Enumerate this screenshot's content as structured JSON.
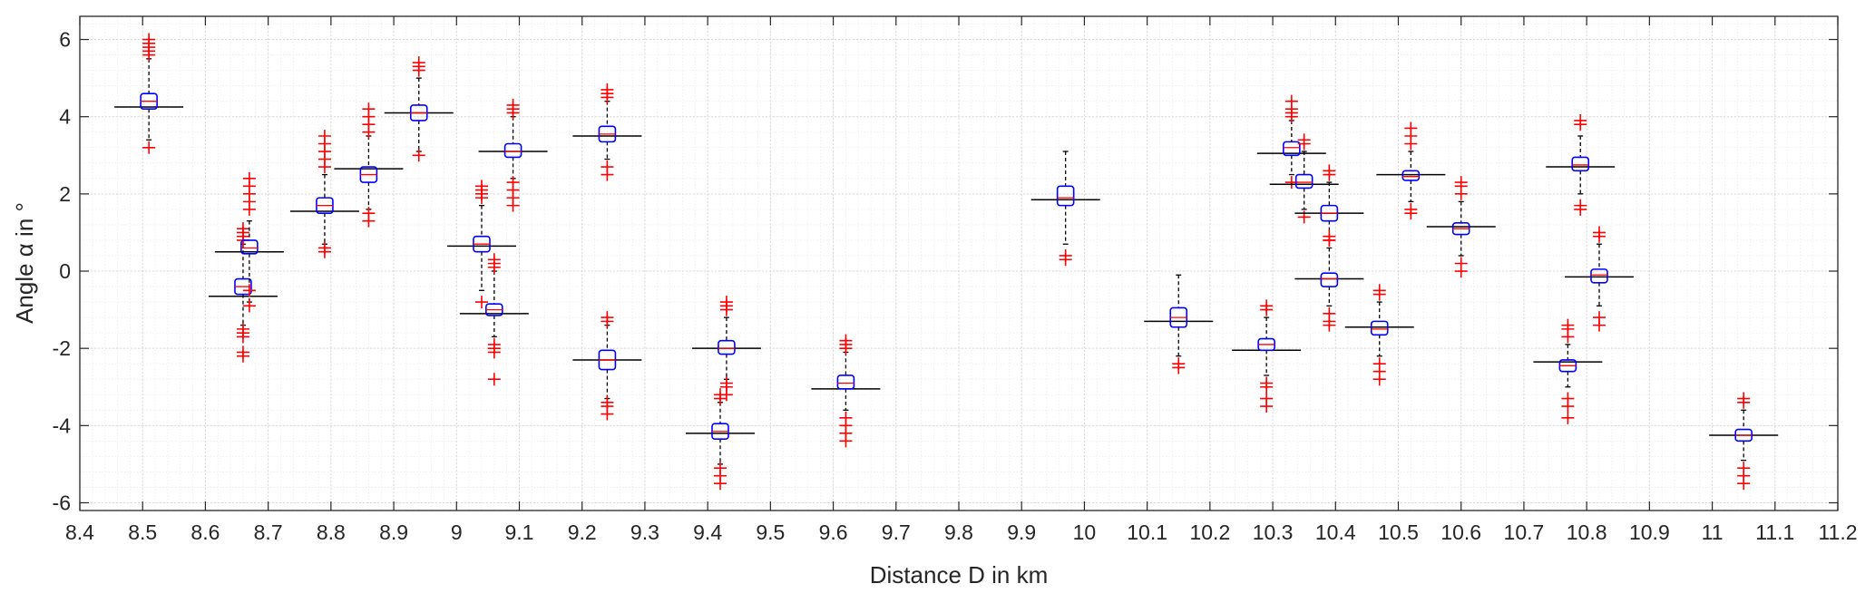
{
  "chart_data": {
    "type": "box",
    "xlabel": "Distance D in km",
    "ylabel": "Angle α in  °",
    "xlim": [
      8.4,
      11.2
    ],
    "ylim": [
      -6.2,
      6.6
    ],
    "xticks": [
      "8.4",
      "8.5",
      "8.6",
      "8.7",
      "8.8",
      "8.9",
      "9",
      "9.1",
      "9.2",
      "9.3",
      "9.4",
      "9.5",
      "9.6",
      "9.7",
      "9.8",
      "9.9",
      "10",
      "10.1",
      "10.2",
      "10.3",
      "10.4",
      "10.5",
      "10.6",
      "10.7",
      "10.8",
      "10.9",
      "11",
      "11.1",
      "11.2"
    ],
    "yticks": [
      "-6",
      "-4",
      "-2",
      "0",
      "2",
      "4",
      "6"
    ],
    "grid": "on",
    "minor_grid": "on",
    "colors": {
      "box": "#0000ff",
      "mean_line": "#000000",
      "outlier": "#ff0000",
      "whisker": "#000000",
      "grid": "#d9d9d9"
    },
    "groups": [
      {
        "x": 8.51,
        "median": 4.4,
        "q1": 4.2,
        "q3": 4.6,
        "lo": 3.4,
        "hi": 5.5,
        "mean": 4.25,
        "outliers": [
          5.6,
          5.7,
          5.8,
          5.9,
          6.0,
          3.2
        ]
      },
      {
        "x": 8.66,
        "median": -0.4,
        "q1": -0.6,
        "q3": -0.2,
        "lo": -1.4,
        "hi": 0.7,
        "mean": -0.65,
        "outliers": [
          0.8,
          0.9,
          1.0,
          1.1,
          -1.5,
          -1.6,
          -1.7,
          -2.2,
          -2.1
        ]
      },
      {
        "x": 8.67,
        "median": 0.6,
        "q1": 0.45,
        "q3": 0.8,
        "lo": -0.8,
        "hi": 1.3,
        "mean": 0.5,
        "outliers": [
          1.6,
          1.8,
          2.0,
          2.2,
          2.4,
          -0.9,
          -0.5
        ]
      },
      {
        "x": 8.79,
        "median": 1.7,
        "q1": 1.5,
        "q3": 1.9,
        "lo": 0.7,
        "hi": 2.5,
        "mean": 1.55,
        "outliers": [
          2.7,
          2.9,
          3.1,
          3.3,
          3.5,
          0.6,
          0.5
        ]
      },
      {
        "x": 8.86,
        "median": 2.5,
        "q1": 2.3,
        "q3": 2.7,
        "lo": 1.6,
        "hi": 3.5,
        "mean": 2.65,
        "outliers": [
          3.6,
          3.8,
          4.0,
          4.2,
          1.5,
          1.3
        ]
      },
      {
        "x": 8.94,
        "median": 4.1,
        "q1": 3.9,
        "q3": 4.3,
        "lo": 3.1,
        "hi": 5.0,
        "mean": 4.1,
        "outliers": [
          5.2,
          5.3,
          5.4,
          3.0
        ]
      },
      {
        "x": 9.04,
        "median": 0.7,
        "q1": 0.5,
        "q3": 0.9,
        "lo": -0.5,
        "hi": 1.7,
        "mean": 0.65,
        "outliers": [
          1.9,
          2.0,
          2.1,
          2.2,
          -0.8
        ]
      },
      {
        "x": 9.06,
        "median": -1.0,
        "q1": -1.15,
        "q3": -0.85,
        "lo": -1.7,
        "hi": 0.0,
        "mean": -1.1,
        "outliers": [
          0.1,
          0.2,
          0.3,
          -1.9,
          -2.0,
          -2.1,
          -2.8
        ]
      },
      {
        "x": 9.09,
        "median": 3.1,
        "q1": 2.95,
        "q3": 3.3,
        "lo": 2.4,
        "hi": 4.0,
        "mean": 3.1,
        "outliers": [
          4.1,
          4.2,
          4.3,
          2.3,
          2.1,
          1.9,
          1.7
        ]
      },
      {
        "x": 9.24,
        "median": 3.55,
        "q1": 3.35,
        "q3": 3.75,
        "lo": 2.9,
        "hi": 4.4,
        "mean": 3.5,
        "outliers": [
          4.5,
          4.6,
          4.7,
          2.7,
          2.5
        ]
      },
      {
        "x": 9.24,
        "median": -2.3,
        "q1": -2.55,
        "q3": -2.05,
        "lo": -3.3,
        "hi": -1.4,
        "mean": -2.3,
        "outliers": [
          -1.2,
          -1.3,
          -3.4,
          -3.5,
          -3.7
        ]
      },
      {
        "x": 9.43,
        "median": -2.0,
        "q1": -2.15,
        "q3": -1.8,
        "lo": -2.8,
        "hi": -1.2,
        "mean": -2.0,
        "outliers": [
          -0.8,
          -0.9,
          -1.0,
          -2.9,
          -3.0,
          -3.2
        ]
      },
      {
        "x": 9.42,
        "median": -4.15,
        "q1": -4.35,
        "q3": -3.95,
        "lo": -5.0,
        "hi": -3.4,
        "mean": -4.2,
        "outliers": [
          -3.2,
          -3.3,
          -5.1,
          -5.3,
          -5.5
        ]
      },
      {
        "x": 9.62,
        "median": -2.9,
        "q1": -3.05,
        "q3": -2.7,
        "lo": -3.6,
        "hi": -2.1,
        "mean": -3.05,
        "outliers": [
          -1.8,
          -1.9,
          -2.0,
          -3.8,
          -4.0,
          -4.2,
          -4.4
        ]
      },
      {
        "x": 9.97,
        "median": 1.9,
        "q1": 1.7,
        "q3": 2.2,
        "lo": 0.7,
        "hi": 3.1,
        "mean": 1.85,
        "outliers": [
          0.4,
          0.3
        ]
      },
      {
        "x": 10.15,
        "median": -1.2,
        "q1": -1.45,
        "q3": -0.95,
        "lo": -2.2,
        "hi": -0.1,
        "mean": -1.3,
        "outliers": [
          -2.4,
          -2.5
        ]
      },
      {
        "x": 10.29,
        "median": -1.9,
        "q1": -2.05,
        "q3": -1.75,
        "lo": -2.7,
        "hi": -1.2,
        "mean": -2.05,
        "outliers": [
          -1.0,
          -0.9,
          -2.9,
          -3.0,
          -3.3,
          -3.5
        ]
      },
      {
        "x": 10.33,
        "median": 3.2,
        "q1": 3.0,
        "q3": 3.35,
        "lo": 2.5,
        "hi": 3.9,
        "mean": 3.05,
        "outliers": [
          4.0,
          4.1,
          4.2,
          4.4,
          2.3
        ]
      },
      {
        "x": 10.35,
        "median": 2.3,
        "q1": 2.15,
        "q3": 2.5,
        "lo": 1.6,
        "hi": 3.1,
        "mean": 2.25,
        "outliers": [
          3.3,
          3.4,
          1.4
        ]
      },
      {
        "x": 10.39,
        "median": 1.5,
        "q1": 1.3,
        "q3": 1.7,
        "lo": 0.9,
        "hi": 2.3,
        "mean": 1.5,
        "outliers": [
          2.5,
          2.6,
          0.8
        ]
      },
      {
        "x": 10.39,
        "median": -0.2,
        "q1": -0.4,
        "q3": -0.05,
        "lo": -0.9,
        "hi": 0.6,
        "mean": -0.2,
        "outliers": [
          0.8,
          0.9,
          -1.1,
          -1.3,
          -1.4
        ]
      },
      {
        "x": 10.47,
        "median": -1.5,
        "q1": -1.65,
        "q3": -1.3,
        "lo": -2.2,
        "hi": -0.8,
        "mean": -1.45,
        "outliers": [
          -0.5,
          -0.6,
          -2.4,
          -2.6,
          -2.8
        ]
      },
      {
        "x": 10.52,
        "median": 2.45,
        "q1": 2.35,
        "q3": 2.6,
        "lo": 1.8,
        "hi": 3.1,
        "mean": 2.5,
        "outliers": [
          3.3,
          3.5,
          3.7,
          1.6,
          1.5
        ]
      },
      {
        "x": 10.6,
        "median": 1.1,
        "q1": 0.95,
        "q3": 1.25,
        "lo": 0.4,
        "hi": 1.8,
        "mean": 1.15,
        "outliers": [
          2.0,
          2.2,
          2.3,
          0.2,
          0.0
        ]
      },
      {
        "x": 10.77,
        "median": -2.45,
        "q1": -2.6,
        "q3": -2.3,
        "lo": -3.0,
        "hi": -1.9,
        "mean": -2.35,
        "outliers": [
          -1.4,
          -1.5,
          -1.7,
          -3.3,
          -3.5,
          -3.8
        ]
      },
      {
        "x": 10.79,
        "median": 2.75,
        "q1": 2.6,
        "q3": 2.95,
        "lo": 2.0,
        "hi": 3.5,
        "mean": 2.7,
        "outliers": [
          3.8,
          3.9,
          1.7,
          1.6
        ]
      },
      {
        "x": 10.82,
        "median": -0.1,
        "q1": -0.3,
        "q3": 0.05,
        "lo": -0.9,
        "hi": 0.7,
        "mean": -0.15,
        "outliers": [
          0.9,
          1.0,
          -1.2,
          -1.4
        ]
      },
      {
        "x": 11.05,
        "median": -4.25,
        "q1": -4.4,
        "q3": -4.1,
        "lo": -4.9,
        "hi": -3.6,
        "mean": -4.25,
        "outliers": [
          -3.3,
          -3.4,
          -5.1,
          -5.3,
          -5.5
        ]
      }
    ]
  }
}
